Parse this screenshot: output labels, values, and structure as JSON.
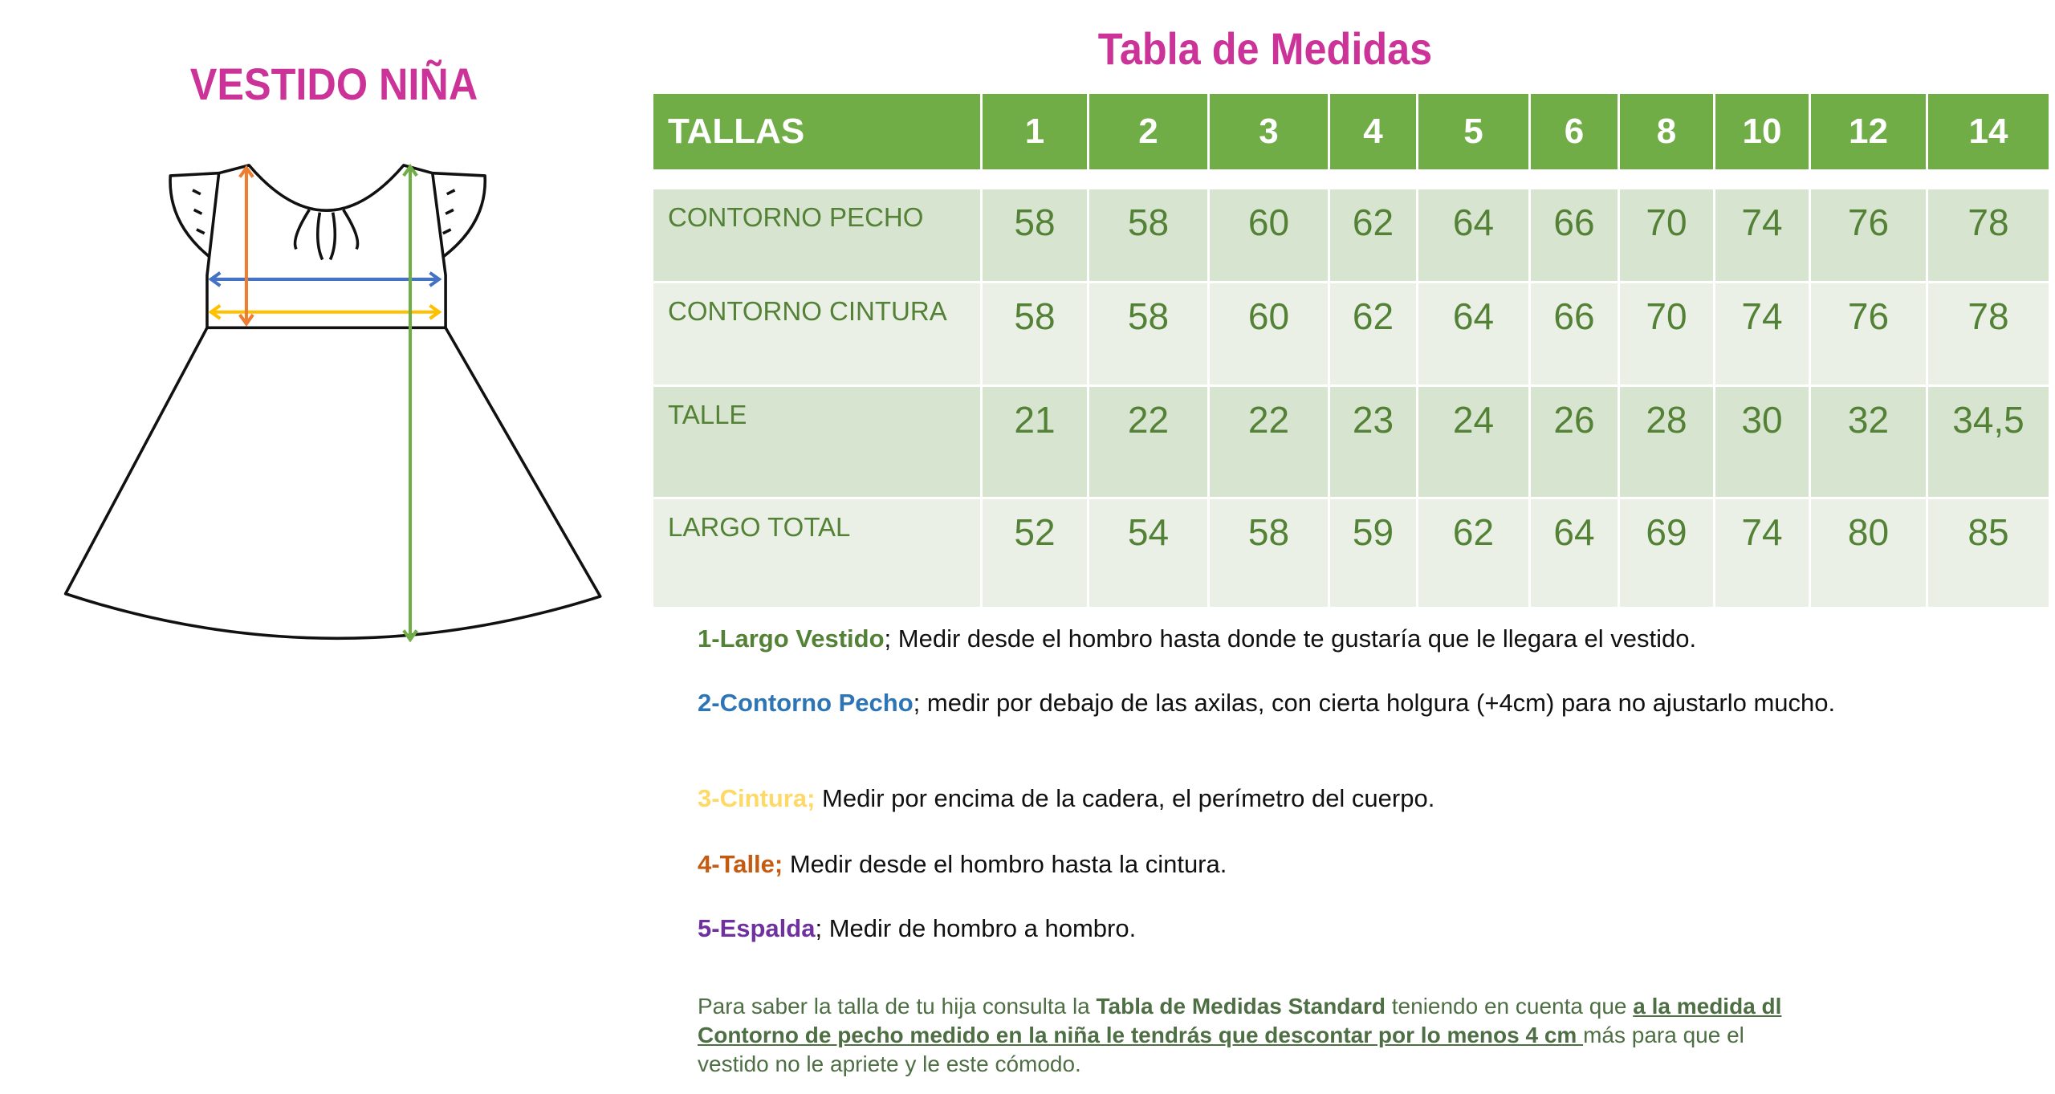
{
  "left_title": "VESTIDO NIÑA",
  "table_title": "Tabla de Medidas",
  "colors": {
    "title": "#CC3399",
    "header": "#70AD47",
    "text": "#538135",
    "pecho": "#2E75B6",
    "cintura": "#FFC000",
    "talle": "#ED7D31",
    "largo": "#70AD47",
    "espalda": "#7030A0"
  },
  "table": {
    "header_label": "TALLAS",
    "sizes": [
      "1",
      "2",
      "3",
      "4",
      "5",
      "6",
      "8",
      "10",
      "12",
      "14"
    ],
    "rows": [
      {
        "label": "CONTORNO PECHO",
        "values": [
          "58",
          "58",
          "60",
          "62",
          "64",
          "66",
          "70",
          "74",
          "76",
          "78"
        ]
      },
      {
        "label": "CONTORNO CINTURA",
        "values": [
          "58",
          "58",
          "60",
          "62",
          "64",
          "66",
          "70",
          "74",
          "76",
          "78"
        ]
      },
      {
        "label": "TALLE",
        "values": [
          "21",
          "22",
          "22",
          "23",
          "24",
          "26",
          "28",
          "30",
          "32",
          "34,5"
        ]
      },
      {
        "label": "LARGO TOTAL",
        "values": [
          "52",
          "54",
          "58",
          "59",
          "62",
          "64",
          "69",
          "74",
          "80",
          "85"
        ]
      }
    ]
  },
  "instructions": [
    {
      "term": "1-Largo Vestido",
      "sep": ";",
      "text": " Medir desde el hombro hasta donde te gustaría que le llegara el vestido.",
      "color": "#538135"
    },
    {
      "term": "2-Contorno Pecho",
      "sep": ";",
      "text": " medir por debajo de las axilas, con cierta holgura (+4cm) para no ajustarlo mucho.",
      "color": "#2E75B6"
    },
    {
      "term": "3-Cintura;",
      "sep": "",
      "text": " Medir por encima de la cadera, el perímetro del cuerpo.",
      "color": "#FFD966"
    },
    {
      "term": "4-Talle;",
      "sep": "",
      "text": " Medir desde el hombro hasta la cintura.",
      "color": "#C55A11"
    },
    {
      "term": "5-Espalda",
      "sep": ";",
      "text": " Medir de hombro a hombro.",
      "color": "#7030A0"
    }
  ],
  "note": {
    "p1": "Para saber la talla de tu hija consulta la ",
    "bold": "Tabla de Medidas Standard",
    "p2": " teniendo en cuenta que ",
    "underlined": "a la medida dl Contorno de pecho medido en la niña le tendrás que descontar por lo menos 4 cm ",
    "p3": " más para que el vestido no le apriete y le este cómodo."
  }
}
